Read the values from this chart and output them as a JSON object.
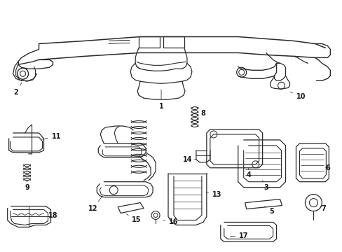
{
  "bg_color": "#ffffff",
  "line_color": "#2a2a2a",
  "text_color": "#1a1a1a",
  "fig_width": 4.89,
  "fig_height": 3.6,
  "dpi": 100,
  "font_size": 7.0
}
